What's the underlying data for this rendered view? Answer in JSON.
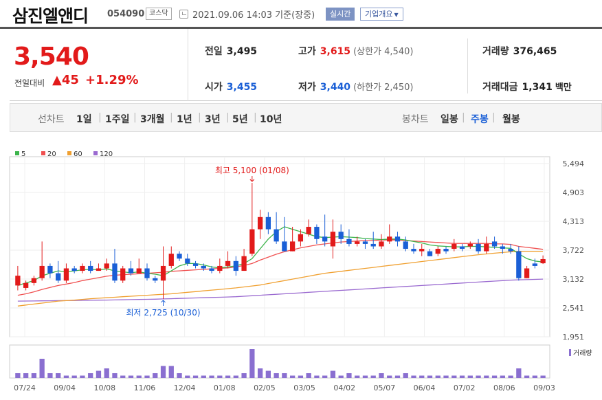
{
  "header": {
    "stock_name": "삼진엘앤디",
    "stock_code": "054090",
    "market_badge": "코스닥",
    "ref_time": "2021.09.06 14:03  기준(장중)",
    "realtime_label": "실시간",
    "overview_label": "기업개요"
  },
  "quote": {
    "current_price": "3,540",
    "change_label": "전일대비",
    "change_value": "▲45",
    "change_pct": "+1.29%",
    "prev_close": {
      "label": "전일",
      "value": "3,495"
    },
    "open": {
      "label": "시가",
      "value": "3,455"
    },
    "high": {
      "label": "고가",
      "value": "3,615",
      "limit": "(상한가 4,540)"
    },
    "low": {
      "label": "저가",
      "value": "3,440",
      "limit": "(하한가 2,450)"
    },
    "volume": {
      "label": "거래량",
      "value": "376,465"
    },
    "amount": {
      "label": "거래대금",
      "value": "1,341",
      "unit": "백만"
    }
  },
  "tabs": {
    "line_group": "선차트",
    "line_items": [
      "1일",
      "1주일",
      "3개월",
      "1년",
      "3년",
      "5년",
      "10년"
    ],
    "candle_group": "봉차트",
    "candle_items": [
      "일봉",
      "주봉",
      "월봉"
    ],
    "selected": "주봉"
  },
  "colors": {
    "up": "#e21a1a",
    "down": "#1a5fd6",
    "ma5": "#3cb44b",
    "ma20": "#f05050",
    "ma60": "#f0a030",
    "ma120": "#9a6ad0",
    "volume": "#8a6fd0"
  },
  "chart_data": {
    "type": "candlestick",
    "legend": [
      {
        "name": "5",
        "color": "#3cb44b"
      },
      {
        "name": "20",
        "color": "#f05050"
      },
      {
        "name": "60",
        "color": "#f0a030"
      },
      {
        "name": "120",
        "color": "#9a6ad0"
      }
    ],
    "y_ticks": [
      "5,494",
      "4,903",
      "4,313",
      "3,722",
      "3,132",
      "2,541",
      "1,951"
    ],
    "ylim": [
      1951,
      5494
    ],
    "x_labels": [
      "07/24",
      "09/04",
      "10/08",
      "11/06",
      "12/04",
      "01/08",
      "02/05",
      "03/05",
      "04/02",
      "05/07",
      "06/04",
      "07/02",
      "08/06",
      "09/03"
    ],
    "max_annotation": "최고 5,100 (01/08)",
    "min_annotation": "최저 2,725 (10/30)",
    "volume_label": "거래량",
    "candles": [
      [
        3000,
        3200,
        3400,
        2900
      ],
      [
        2950,
        3050,
        3100,
        2900
      ],
      [
        3050,
        3150,
        3200,
        3000
      ],
      [
        3150,
        3400,
        3900,
        3100
      ],
      [
        3400,
        3250,
        3450,
        3150
      ],
      [
        3250,
        3100,
        3500,
        3050
      ],
      [
        3100,
        3350,
        3450,
        3050
      ],
      [
        3350,
        3300,
        3400,
        3250
      ],
      [
        3300,
        3400,
        3450,
        3250
      ],
      [
        3400,
        3300,
        3500,
        3250
      ],
      [
        3300,
        3350,
        3450,
        3300
      ],
      [
        3350,
        3450,
        3550,
        3300
      ],
      [
        3450,
        3100,
        3750,
        3050
      ],
      [
        3100,
        3350,
        3400,
        3050
      ],
      [
        3350,
        3250,
        3500,
        3200
      ],
      [
        3250,
        3350,
        3550,
        3300
      ],
      [
        3350,
        3150,
        3450,
        3100
      ],
      [
        3150,
        3100,
        3200,
        3050
      ],
      [
        3100,
        3400,
        3800,
        2725
      ],
      [
        3400,
        3650,
        3800,
        3350
      ],
      [
        3650,
        3550,
        3700,
        3500
      ],
      [
        3550,
        3450,
        3650,
        3400
      ],
      [
        3450,
        3400,
        3500,
        3350
      ],
      [
        3400,
        3350,
        3450,
        3300
      ],
      [
        3350,
        3300,
        3400,
        3250
      ],
      [
        3300,
        3400,
        3550,
        3250
      ],
      [
        3400,
        3500,
        3700,
        3350
      ],
      [
        3500,
        3300,
        3600,
        3200
      ],
      [
        3300,
        3600,
        3750,
        3300
      ],
      [
        3650,
        4150,
        5100,
        3600
      ],
      [
        4150,
        4400,
        4550,
        3950
      ],
      [
        4400,
        4150,
        4500,
        4050
      ],
      [
        4150,
        3900,
        4500,
        3850
      ],
      [
        3900,
        3700,
        4400,
        3700
      ],
      [
        3700,
        3900,
        4200,
        3700
      ],
      [
        3900,
        4050,
        4150,
        3800
      ],
      [
        4050,
        4200,
        4350,
        4000
      ],
      [
        4200,
        3950,
        4250,
        3850
      ],
      [
        4000,
        3900,
        4450,
        3800
      ],
      [
        3800,
        4100,
        4350,
        3550
      ],
      [
        4100,
        3950,
        4250,
        3850
      ],
      [
        3950,
        3850,
        4150,
        3800
      ],
      [
        3850,
        3900,
        4000,
        3800
      ],
      [
        3900,
        3850,
        3950,
        3750
      ],
      [
        3850,
        3800,
        4100,
        3750
      ],
      [
        3800,
        3900,
        4050,
        3750
      ],
      [
        3900,
        4000,
        4250,
        3850
      ],
      [
        4000,
        3900,
        4100,
        3800
      ],
      [
        3900,
        3750,
        4000,
        3700
      ],
      [
        3750,
        3700,
        3850,
        3650
      ],
      [
        3700,
        3750,
        3850,
        3600
      ],
      [
        3700,
        3600,
        3750,
        3600
      ],
      [
        3650,
        3750,
        3800,
        3600
      ],
      [
        3750,
        3700,
        3800,
        3650
      ],
      [
        3750,
        3850,
        3950,
        3700
      ],
      [
        3800,
        3750,
        3850,
        3700
      ],
      [
        3800,
        3850,
        3900,
        3750
      ],
      [
        3850,
        3700,
        3950,
        3650
      ],
      [
        3700,
        3850,
        4000,
        3650
      ],
      [
        3900,
        3800,
        4000,
        3750
      ],
      [
        3800,
        3750,
        3850,
        3650
      ],
      [
        3750,
        3700,
        3850,
        3650
      ],
      [
        3700,
        3150,
        3800,
        3100
      ],
      [
        3150,
        3350,
        3400,
        3150
      ],
      [
        3450,
        3400,
        3550,
        3350
      ],
      [
        3455,
        3540,
        3615,
        3440
      ]
    ],
    "ma5": [
      3000,
      3050,
      3100,
      3200,
      3250,
      3300,
      3280,
      3300,
      3320,
      3330,
      3320,
      3340,
      3300,
      3280,
      3260,
      3280,
      3250,
      3230,
      3200,
      3300,
      3400,
      3450,
      3450,
      3420,
      3380,
      3360,
      3380,
      3400,
      3450,
      3550,
      3750,
      3950,
      4100,
      4200,
      4150,
      4100,
      4050,
      4000,
      3980,
      3990,
      4000,
      3990,
      3980,
      3960,
      3950,
      3940,
      3950,
      3950,
      3930,
      3900,
      3870,
      3830,
      3810,
      3800,
      3790,
      3790,
      3800,
      3800,
      3790,
      3780,
      3770,
      3760,
      3650,
      3550,
      3500,
      3480
    ],
    "ma20": [
      2800,
      2830,
      2870,
      2920,
      2960,
      3000,
      3030,
      3060,
      3100,
      3130,
      3160,
      3190,
      3210,
      3220,
      3230,
      3240,
      3250,
      3260,
      3270,
      3290,
      3300,
      3310,
      3320,
      3330,
      3340,
      3350,
      3360,
      3380,
      3410,
      3450,
      3520,
      3580,
      3640,
      3690,
      3730,
      3770,
      3800,
      3830,
      3850,
      3870,
      3890,
      3900,
      3910,
      3920,
      3920,
      3930,
      3930,
      3930,
      3920,
      3910,
      3900,
      3890,
      3880,
      3870,
      3860,
      3860,
      3860,
      3860,
      3860,
      3850,
      3850,
      3840,
      3800,
      3780,
      3760,
      3740
    ],
    "ma60": [
      2580,
      2600,
      2620,
      2640,
      2660,
      2680,
      2690,
      2700,
      2715,
      2730,
      2740,
      2750,
      2760,
      2770,
      2780,
      2790,
      2800,
      2810,
      2820,
      2830,
      2845,
      2860,
      2875,
      2890,
      2905,
      2920,
      2935,
      2950,
      2970,
      2990,
      3010,
      3040,
      3070,
      3100,
      3130,
      3160,
      3190,
      3220,
      3250,
      3270,
      3290,
      3310,
      3330,
      3350,
      3370,
      3390,
      3410,
      3430,
      3450,
      3470,
      3490,
      3510,
      3530,
      3550,
      3570,
      3590,
      3610,
      3630,
      3645,
      3660,
      3675,
      3690,
      3700,
      3700,
      3700,
      3700
    ],
    "ma120": [
      2680,
      2682,
      2684,
      2686,
      2688,
      2690,
      2692,
      2694,
      2696,
      2698,
      2700,
      2702,
      2705,
      2708,
      2711,
      2714,
      2717,
      2720,
      2725,
      2730,
      2735,
      2740,
      2745,
      2750,
      2755,
      2760,
      2765,
      2770,
      2780,
      2790,
      2800,
      2810,
      2820,
      2830,
      2840,
      2850,
      2860,
      2870,
      2880,
      2890,
      2900,
      2910,
      2920,
      2930,
      2940,
      2950,
      2960,
      2970,
      2980,
      2990,
      3000,
      3010,
      3020,
      3030,
      3040,
      3050,
      3060,
      3070,
      3080,
      3090,
      3100,
      3110,
      3115,
      3120,
      3125,
      3130
    ],
    "volume": [
      1,
      1,
      1,
      4,
      1,
      1,
      0.5,
      0.5,
      0.5,
      1,
      1.5,
      2,
      1,
      0.5,
      0.5,
      0.5,
      0.5,
      1,
      2.5,
      2.5,
      1,
      0.5,
      0.5,
      0.5,
      0.5,
      0.5,
      0.5,
      0.5,
      1,
      6,
      2,
      1.5,
      1,
      1,
      0.5,
      0.5,
      1,
      0.5,
      0.5,
      1.5,
      0.5,
      1,
      0.5,
      0.5,
      0.5,
      1,
      0.5,
      0.5,
      1,
      0.5,
      0.5,
      0.5,
      0.5,
      0.5,
      0.5,
      0.5,
      0.5,
      0.5,
      0.5,
      0.5,
      0.5,
      0.5,
      2,
      0.5,
      0.5,
      0.5
    ]
  }
}
